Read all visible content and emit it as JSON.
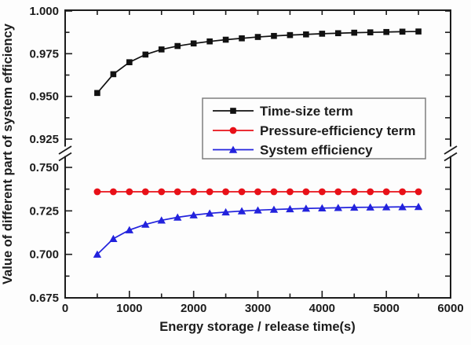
{
  "figure": {
    "background": "#fdfdfd"
  },
  "chart_data": {
    "type": "line",
    "title": "",
    "xlabel": "Energy storage / release time(s)",
    "ylabel": "Value of different part of system efficiency",
    "grid": false,
    "style": {
      "background": "#fdfdfd",
      "axis_color": "#1c1c1c",
      "text_color": "#1c1c1c",
      "legend_border_color": "#7f7f7f"
    },
    "x": [
      500,
      750,
      1000,
      1250,
      1500,
      1750,
      2000,
      2250,
      2500,
      2750,
      3000,
      3250,
      3500,
      3750,
      4000,
      4250,
      4500,
      4750,
      5000,
      5250,
      5500
    ],
    "series": [
      {
        "id": "time-size",
        "name": "Time-size term",
        "color": "#111111",
        "marker": "square",
        "axis_segment": "top",
        "values": [
          0.952,
          0.963,
          0.97,
          0.9745,
          0.9775,
          0.9795,
          0.981,
          0.9822,
          0.9832,
          0.984,
          0.9848,
          0.9854,
          0.9859,
          0.9863,
          0.9867,
          0.987,
          0.9873,
          0.9875,
          0.9877,
          0.9879,
          0.988
        ]
      },
      {
        "id": "pressure-efficiency",
        "name": "Pressure-efficiency term",
        "color": "#e81018",
        "marker": "circle",
        "axis_segment": "bottom",
        "values": [
          0.736,
          0.736,
          0.736,
          0.736,
          0.736,
          0.736,
          0.736,
          0.736,
          0.736,
          0.736,
          0.736,
          0.736,
          0.736,
          0.736,
          0.736,
          0.736,
          0.736,
          0.736,
          0.736,
          0.736,
          0.736
        ]
      },
      {
        "id": "system-efficiency",
        "name": "System efficiency",
        "color": "#2222dd",
        "marker": "triangle",
        "axis_segment": "bottom",
        "values": [
          0.7,
          0.709,
          0.714,
          0.7172,
          0.7196,
          0.7213,
          0.7226,
          0.7236,
          0.7243,
          0.7249,
          0.7254,
          0.7258,
          0.7261,
          0.7264,
          0.7266,
          0.7268,
          0.727,
          0.7271,
          0.7272,
          0.7273,
          0.7274
        ]
      }
    ],
    "x_axis": {
      "min": 0,
      "max": 6000,
      "major_step": 1000,
      "minor_step": 500,
      "major_values": [
        0,
        1000,
        2000,
        3000,
        4000,
        5000,
        6000
      ],
      "major_labels": [
        "0",
        "1000",
        "2000",
        "3000",
        "4000",
        "5000",
        "6000"
      ]
    },
    "y_axis": {
      "broken": true,
      "break_between": [
        0.75,
        0.925
      ],
      "segments": [
        {
          "id": "top",
          "range": [
            0.925,
            1.0
          ],
          "major_ticks": [
            1.0,
            0.975,
            0.95,
            0.925
          ],
          "major_labels": [
            "1.000",
            "0.975",
            "0.950",
            "0.925"
          ],
          "minor_ticks": [
            0.9875,
            0.9625,
            0.9375
          ]
        },
        {
          "id": "bottom",
          "range": [
            0.675,
            0.75
          ],
          "major_ticks": [
            0.75,
            0.725,
            0.7,
            0.675
          ],
          "major_labels": [
            "0.750",
            "0.725",
            "0.700",
            "0.675"
          ],
          "minor_ticks": [
            0.7375,
            0.7125,
            0.6875
          ]
        }
      ]
    },
    "legend": {
      "position": "middle-right",
      "entries": [
        "Time-size term",
        "Pressure-efficiency term",
        "System efficiency"
      ]
    }
  }
}
